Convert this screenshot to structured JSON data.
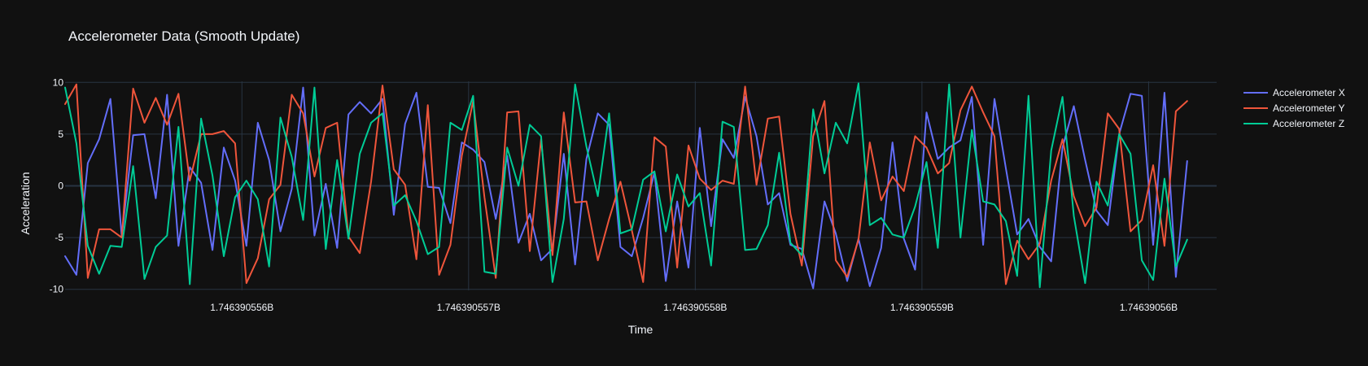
{
  "chart_data": {
    "type": "line",
    "title": "Accelerometer Data (Smooth Update)",
    "xlabel": "Time",
    "ylabel": "Acceleration",
    "x_tick_labels": [
      "1.746390556B",
      "1.746390557B",
      "1.746390558B",
      "1.746390559B",
      "1.74639056B"
    ],
    "x_tick_values": [
      1746390556,
      1746390557,
      1746390558,
      1746390559,
      1746390560
    ],
    "xlim": [
      1746390555.22,
      1746390560.3
    ],
    "y_ticks": [
      10,
      5,
      0,
      -5,
      -10
    ],
    "ylim": [
      -10.1,
      10.1
    ],
    "grid": true,
    "legend_position": "top-right",
    "x_start": 1746390555.22,
    "x_step": 0.05,
    "series": [
      {
        "name": "Accelerometer X",
        "color": "#636efa",
        "values": [
          -6.8,
          -8.6,
          2.2,
          4.5,
          8.4,
          -4.9,
          4.9,
          5.0,
          -1.2,
          8.8,
          -5.8,
          1.8,
          0.3,
          -6.2,
          3.7,
          0.5,
          -5.8,
          6.1,
          2.5,
          -4.4,
          -0.3,
          9.5,
          -4.8,
          0.2,
          -6.0,
          6.9,
          8.1,
          7.0,
          8.4,
          -2.8,
          6.0,
          9.0,
          -0.1,
          -0.2,
          -3.6,
          4.2,
          3.5,
          2.3,
          -3.2,
          2.9,
          -5.5,
          -2.7,
          -7.2,
          -6.1,
          3.1,
          -7.6,
          2.6,
          7.0,
          5.9,
          -5.9,
          -6.8,
          -3.1,
          1.3,
          -9.2,
          -1.5,
          -7.9,
          5.6,
          -3.9,
          4.5,
          2.7,
          8.6,
          4.8,
          -1.8,
          -0.7,
          -5.7,
          -6.1,
          -9.9,
          -1.5,
          -4.6,
          -9.2,
          -5.1,
          -9.7,
          -6.0,
          4.2,
          -5.1,
          -8.1,
          7.1,
          2.6,
          3.7,
          4.4,
          8.6,
          -5.7,
          8.4,
          1.7,
          -4.7,
          -3.2,
          -5.9,
          -7.3,
          3.7,
          7.7,
          2.5,
          -2.4,
          -3.8,
          5.0,
          8.9,
          8.7,
          -5.7,
          9.0,
          -8.8,
          2.4
        ]
      },
      {
        "name": "Accelerometer Y",
        "color": "#ef553b",
        "values": [
          7.9,
          9.8,
          -8.9,
          -4.2,
          -4.2,
          -5.0,
          9.4,
          6.1,
          8.5,
          5.9,
          8.9,
          0.5,
          5.0,
          5.0,
          5.3,
          4.1,
          -9.4,
          -7.0,
          -1.3,
          0.1,
          8.8,
          7.0,
          0.9,
          5.6,
          6.1,
          -4.9,
          -6.5,
          0.4,
          9.7,
          1.6,
          0.1,
          -7.1,
          7.8,
          -8.6,
          -5.7,
          2.9,
          8.2,
          -1.1,
          -8.9,
          7.1,
          7.2,
          -6.3,
          4.5,
          -6.7,
          7.1,
          -1.6,
          -1.5,
          -7.2,
          -3.2,
          0.4,
          -4.3,
          -9.3,
          4.7,
          3.8,
          -7.9,
          3.9,
          0.7,
          -0.4,
          0.5,
          0.2,
          9.6,
          0.1,
          6.5,
          6.7,
          -2.7,
          -7.7,
          4.8,
          8.2,
          -7.2,
          -8.8,
          -5.2,
          4.2,
          -1.4,
          0.9,
          -0.5,
          4.8,
          3.7,
          1.2,
          2.2,
          7.3,
          9.6,
          7.1,
          4.8,
          -9.5,
          -5.3,
          -7.1,
          -5.6,
          0.5,
          4.5,
          -1.0,
          -3.9,
          -2.1,
          7.0,
          5.5,
          -4.4,
          -3.3,
          2.0,
          -5.8,
          7.2,
          8.2
        ]
      },
      {
        "name": "Accelerometer Z",
        "color": "#00cc96",
        "values": [
          9.5,
          4.1,
          -5.8,
          -8.5,
          -5.8,
          -5.9,
          1.9,
          -9.0,
          -5.9,
          -4.8,
          5.7,
          -9.5,
          6.5,
          1.0,
          -6.8,
          -1.1,
          0.5,
          -1.3,
          -7.8,
          6.6,
          2.8,
          -3.3,
          9.5,
          -6.1,
          2.5,
          -5.1,
          3.1,
          6.1,
          7.0,
          -1.9,
          -0.9,
          -3.4,
          -6.6,
          -5.9,
          6.1,
          5.4,
          8.7,
          -8.3,
          -8.5,
          3.7,
          0.0,
          5.9,
          4.8,
          -9.3,
          -3.2,
          9.8,
          3.8,
          -1.0,
          7.0,
          -4.6,
          -4.2,
          0.6,
          1.4,
          -4.4,
          1.1,
          -2.0,
          -0.7,
          -7.7,
          6.2,
          5.7,
          -6.2,
          -6.1,
          -3.8,
          3.2,
          -5.5,
          -6.7,
          7.4,
          1.2,
          6.1,
          4.1,
          9.9,
          -3.8,
          -3.1,
          -4.7,
          -5.0,
          -2.0,
          2.3,
          -6.0,
          9.8,
          -5.0,
          5.4,
          -1.5,
          -1.8,
          -3.4,
          -8.7,
          8.7,
          -9.8,
          3.4,
          8.6,
          -2.9,
          -9.4,
          0.4,
          -1.9,
          5.0,
          3.1,
          -7.2,
          -9.1,
          0.7,
          -7.8,
          -5.2
        ]
      }
    ]
  }
}
